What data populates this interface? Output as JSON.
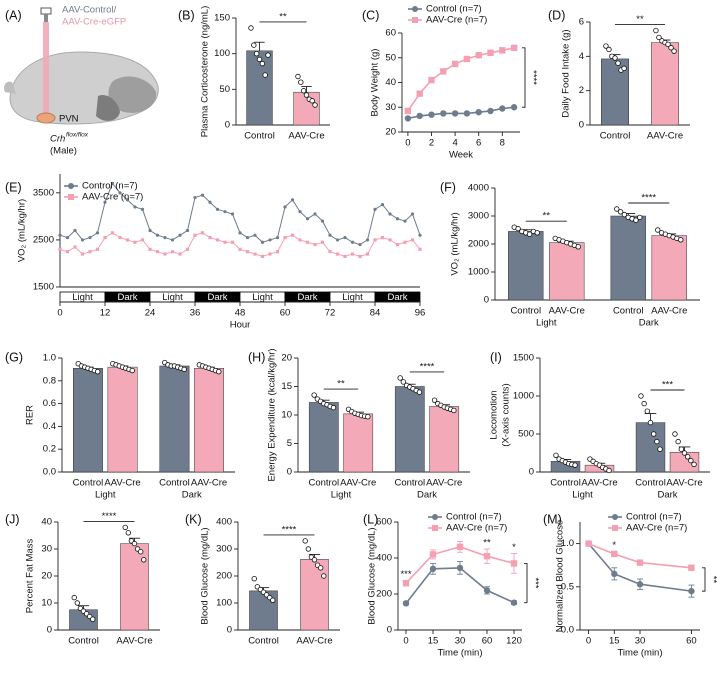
{
  "diagram": {
    "label": "(A)",
    "vector_control": "AAV-Control/",
    "vector_cre": "AAV-Cre-eGFP",
    "region": "PVN",
    "genotype": "Crh",
    "genotype_superscript": "flox/flox",
    "sex": "(Male)"
  },
  "chart_data": [
    {
      "type": "bar",
      "label": "(B)",
      "ylabel": "Plasma Corticosterone (ng/mL)",
      "categories": [
        "Control",
        "AAV-Cre"
      ],
      "values": [
        104,
        46
      ],
      "errors": [
        12,
        8
      ],
      "colors": [
        "#6e7c8e",
        "#f4a9b8"
      ],
      "points": [
        [
          136,
          112,
          100,
          92,
          86,
          70,
          98
        ],
        [
          68,
          60,
          48,
          42,
          36,
          34,
          28
        ]
      ],
      "ylim": [
        0,
        150
      ],
      "yticks": [
        0,
        50,
        100,
        150
      ],
      "significance": [
        "**"
      ]
    },
    {
      "type": "line",
      "label": "(C)",
      "ylabel": "Body Weight (g)",
      "xlabel": "Week",
      "x": [
        0,
        1,
        2,
        3,
        4,
        5,
        6,
        7,
        8,
        9
      ],
      "xlim": [
        -0.5,
        9.5
      ],
      "xticks": [
        0,
        2,
        4,
        6,
        8
      ],
      "ylim": [
        20,
        60
      ],
      "yticks": [
        20,
        30,
        40,
        50,
        60
      ],
      "series": [
        {
          "name": "Control (n=7)",
          "color": "#6e7c8e",
          "marker": "circle",
          "values": [
            25.5,
            26.5,
            27,
            27.5,
            27.5,
            27.5,
            28,
            28.5,
            29.5,
            30
          ]
        },
        {
          "name": "AAV-Cre (n=7)",
          "color": "#f4a0b3",
          "marker": "square",
          "values": [
            28.5,
            35.5,
            41,
            44.5,
            47.5,
            49.5,
            51,
            52,
            53,
            54
          ]
        }
      ],
      "significance": [
        "****"
      ]
    },
    {
      "type": "bar",
      "label": "(D)",
      "ylabel": "Daily Food Intake (g)",
      "categories": [
        "Control",
        "AAV-Cre"
      ],
      "values": [
        3.85,
        4.8
      ],
      "errors": [
        0.25,
        0.15
      ],
      "colors": [
        "#6e7c8e",
        "#f4a9b8"
      ],
      "points": [
        [
          4.6,
          4.4,
          4.0,
          3.9,
          3.6,
          3.2,
          3.3
        ],
        [
          5.5,
          5.1,
          4.9,
          4.8,
          4.7,
          4.5,
          4.3
        ]
      ],
      "ylim": [
        0,
        6
      ],
      "yticks": [
        0,
        2,
        4,
        6
      ],
      "significance": [
        "**"
      ]
    },
    {
      "type": "line",
      "label": "(E)",
      "ylabel": "VO₂ (mL/kg/hr)",
      "xlabel": "Hour",
      "x": [
        0,
        2,
        4,
        6,
        8,
        10,
        12,
        14,
        16,
        18,
        20,
        22,
        24,
        26,
        28,
        30,
        32,
        34,
        36,
        38,
        40,
        42,
        44,
        46,
        48,
        50,
        52,
        54,
        56,
        58,
        60,
        62,
        64,
        66,
        68,
        70,
        72,
        74,
        76,
        78,
        80,
        82,
        84,
        86,
        88,
        90,
        92,
        94,
        96
      ],
      "xlim": [
        0,
        96
      ],
      "xticks": [
        0,
        12,
        24,
        36,
        48,
        60,
        72,
        84,
        96
      ],
      "ylim": [
        1500,
        3900
      ],
      "yticks": [
        1500,
        2500,
        3500
      ],
      "periods": [
        "Light",
        "Dark",
        "Light",
        "Dark",
        "Light",
        "Dark",
        "Light",
        "Dark"
      ],
      "series": [
        {
          "name": "Control (n=7)",
          "color": "#6e7c8e",
          "marker": "circle",
          "values": [
            2600,
            2550,
            2700,
            2500,
            2550,
            2650,
            3300,
            3700,
            3500,
            3350,
            3200,
            3150,
            2700,
            2600,
            2550,
            2500,
            2600,
            2700,
            3400,
            3450,
            3300,
            3150,
            3100,
            3050,
            2650,
            2550,
            2600,
            2450,
            2500,
            2550,
            3200,
            3350,
            3100,
            2950,
            3050,
            2900,
            2600,
            2500,
            2550,
            2450,
            2400,
            2500,
            3150,
            3250,
            3050,
            2950,
            2900,
            3050,
            2600
          ]
        },
        {
          "name": "AAV-Cre (n=7)",
          "color": "#f4a0b3",
          "marker": "square",
          "values": [
            2300,
            2250,
            2350,
            2200,
            2250,
            2300,
            2550,
            2650,
            2550,
            2500,
            2450,
            2500,
            2300,
            2250,
            2200,
            2250,
            2200,
            2300,
            2600,
            2650,
            2550,
            2500,
            2450,
            2450,
            2300,
            2250,
            2200,
            2150,
            2200,
            2250,
            2550,
            2600,
            2500,
            2450,
            2400,
            2450,
            2250,
            2200,
            2150,
            2200,
            2150,
            2200,
            2500,
            2550,
            2500,
            2400,
            2450,
            2500,
            2300
          ]
        }
      ]
    },
    {
      "type": "grouped_bar",
      "label": "(F)",
      "ylabel": "VO₂ (mL/kg/hr)",
      "groups": [
        "Light",
        "Dark"
      ],
      "series": [
        {
          "name": "Control",
          "color": "#6e7c8e",
          "values": [
            2450,
            3000
          ],
          "errors": [
            60,
            90
          ],
          "points": [
            [
              2600,
              2550,
              2450,
              2400,
              2350,
              2450,
              2400
            ],
            [
              3250,
              3150,
              3050,
              2950,
              2900,
              2850,
              2950
            ]
          ]
        },
        {
          "name": "AAV-Cre",
          "color": "#f4a9b8",
          "values": [
            2050,
            2300
          ],
          "errors": [
            50,
            60
          ],
          "points": [
            [
              2200,
              2150,
              2100,
              2050,
              2000,
              1950,
              1900
            ],
            [
              2500,
              2400,
              2350,
              2300,
              2250,
              2200,
              2150
            ]
          ]
        }
      ],
      "ylim": [
        0,
        4000
      ],
      "yticks": [
        0,
        1000,
        2000,
        3000,
        4000
      ],
      "significance": [
        "**",
        "****"
      ]
    },
    {
      "type": "grouped_bar",
      "label": "(G)",
      "ylabel": "RER",
      "groups": [
        "Light",
        "Dark"
      ],
      "series": [
        {
          "name": "Control",
          "color": "#6e7c8e",
          "values": [
            0.91,
            0.93
          ],
          "errors": [
            0.01,
            0.01
          ],
          "points": [
            [
              0.95,
              0.93,
              0.92,
              0.91,
              0.9,
              0.89,
              0.88
            ],
            [
              0.96,
              0.94,
              0.93,
              0.93,
              0.92,
              0.91,
              0.9
            ]
          ]
        },
        {
          "name": "AAV-Cre",
          "color": "#f4a9b8",
          "values": [
            0.92,
            0.91
          ],
          "errors": [
            0.01,
            0.01
          ],
          "points": [
            [
              0.95,
              0.94,
              0.93,
              0.92,
              0.91,
              0.9,
              0.89
            ],
            [
              0.94,
              0.93,
              0.92,
              0.91,
              0.9,
              0.89,
              0.88
            ]
          ]
        }
      ],
      "ylim": [
        0,
        1.0
      ],
      "yticks": [
        {
          "value": 0,
          "label": "0.0"
        },
        0.2,
        0.4,
        0.6,
        0.8,
        {
          "value": 1,
          "label": "1.0"
        }
      ]
    },
    {
      "type": "grouped_bar",
      "label": "(H)",
      "ylabel": "Energy Expenditure (kcal/kg/hr)",
      "groups": [
        "Light",
        "Dark"
      ],
      "series": [
        {
          "name": "Control",
          "color": "#6e7c8e",
          "values": [
            12.2,
            15.0
          ],
          "errors": [
            0.4,
            0.4
          ],
          "points": [
            [
              13.5,
              12.8,
              12.4,
              12.0,
              11.8,
              11.5,
              11.3
            ],
            [
              16.5,
              15.8,
              15.2,
              14.9,
              14.6,
              14.3,
              14.0
            ]
          ]
        },
        {
          "name": "AAV-Cre",
          "color": "#f4a9b8",
          "values": [
            10.2,
            11.5
          ],
          "errors": [
            0.3,
            0.3
          ],
          "points": [
            [
              11.0,
              10.6,
              10.3,
              10.1,
              9.9,
              9.8,
              9.7
            ],
            [
              12.6,
              12.0,
              11.7,
              11.4,
              11.2,
              11.0,
              10.8
            ]
          ]
        }
      ],
      "ylim": [
        0,
        20
      ],
      "yticks": [
        0,
        5,
        10,
        15,
        20
      ],
      "significance": [
        "**",
        "****"
      ]
    },
    {
      "type": "grouped_bar",
      "label": "(I)",
      "ylabel": [
        "Locomotion",
        "(X-axis counts)"
      ],
      "groups": [
        "Light",
        "Dark"
      ],
      "series": [
        {
          "name": "Control",
          "color": "#6e7c8e",
          "values": [
            140,
            650
          ],
          "errors": [
            25,
            120
          ],
          "points": [
            [
              220,
              170,
              150,
              130,
              110,
              100,
              90
            ],
            [
              1000,
              900,
              800,
              650,
              500,
              400,
              300
            ]
          ]
        },
        {
          "name": "AAV-Cre",
          "color": "#f4a9b8",
          "values": [
            90,
            260
          ],
          "errors": [
            25,
            70
          ],
          "points": [
            [
              170,
              140,
              110,
              90,
              60,
              40,
              20
            ],
            [
              500,
              400,
              300,
              250,
              200,
              150,
              100
            ]
          ]
        }
      ],
      "ylim": [
        0,
        1500
      ],
      "yticks": [
        0,
        500,
        1000,
        1500
      ],
      "significance": [
        "***"
      ]
    },
    {
      "type": "bar",
      "label": "(J)",
      "ylabel": "Percent Fat Mass",
      "categories": [
        "Control",
        "AAV-Cre"
      ],
      "values": [
        7.5,
        32
      ],
      "errors": [
        1.5,
        2
      ],
      "colors": [
        "#6e7c8e",
        "#f4a9b8"
      ],
      "points": [
        [
          12,
          10,
          8,
          7,
          6,
          5,
          4
        ],
        [
          38,
          36,
          33,
          32,
          30,
          29,
          26
        ]
      ],
      "ylim": [
        0,
        40
      ],
      "yticks": [
        0,
        10,
        20,
        30,
        40
      ],
      "significance": [
        "****"
      ]
    },
    {
      "type": "bar",
      "label": "(K)",
      "ylabel": "Blood Glucose (mg/dL)",
      "categories": [
        "Control",
        "AAV-Cre"
      ],
      "values": [
        145,
        262
      ],
      "errors": [
        12,
        18
      ],
      "colors": [
        "#6e7c8e",
        "#f4a9b8"
      ],
      "points": [
        [
          190,
          160,
          150,
          140,
          130,
          120,
          110
        ],
        [
          330,
          300,
          270,
          260,
          240,
          230,
          200
        ]
      ],
      "ylim": [
        0,
        400
      ],
      "yticks": [
        0,
        100,
        200,
        300,
        400
      ],
      "significance": [
        "****"
      ]
    },
    {
      "type": "line",
      "label": "(L)",
      "ylabel": "Blood Glucose (mg/dL)",
      "xlabel": "Time (min)",
      "categories": [
        "0",
        "15",
        "30",
        "60",
        "120"
      ],
      "ylim": [
        0,
        600
      ],
      "yticks": [
        0,
        200,
        400,
        600
      ],
      "series": [
        {
          "name": "Control (n=7)",
          "color": "#6e7c8e",
          "marker": "circle",
          "values": [
            148,
            340,
            345,
            220,
            152
          ],
          "errors": [
            8,
            30,
            35,
            20,
            10
          ]
        },
        {
          "name": "AAV-Cre (n=7)",
          "color": "#f4a0b3",
          "marker": "square",
          "values": [
            260,
            420,
            462,
            410,
            370
          ],
          "errors": [
            15,
            25,
            30,
            40,
            55
          ]
        }
      ],
      "annotations": [
        "***",
        "**",
        "*",
        "***"
      ]
    },
    {
      "type": "line",
      "label": "(M)",
      "ylabel": "Normalized Blood Glucose",
      "xlabel": "Time (min)",
      "x": [
        0,
        15,
        30,
        60
      ],
      "xlim": [
        -5,
        65
      ],
      "xticks": [
        0,
        15,
        30,
        60
      ],
      "ylim": [
        0,
        1.25
      ],
      "yticks": [
        {
          "value": 0,
          "label": "0.0"
        },
        0.5,
        {
          "value": 1,
          "label": "1.0"
        }
      ],
      "series": [
        {
          "name": "Control (n=7)",
          "color": "#6e7c8e",
          "marker": "circle",
          "values": [
            1.0,
            0.65,
            0.53,
            0.45
          ],
          "errors": [
            0.02,
            0.07,
            0.06,
            0.07
          ]
        },
        {
          "name": "AAV-Cre (n=7)",
          "color": "#f4a0b3",
          "marker": "square",
          "values": [
            1.0,
            0.88,
            0.78,
            0.72
          ],
          "errors": [
            0.02,
            0.03,
            0.03,
            0.03
          ]
        }
      ],
      "annotations": [
        "*",
        "**"
      ]
    }
  ]
}
